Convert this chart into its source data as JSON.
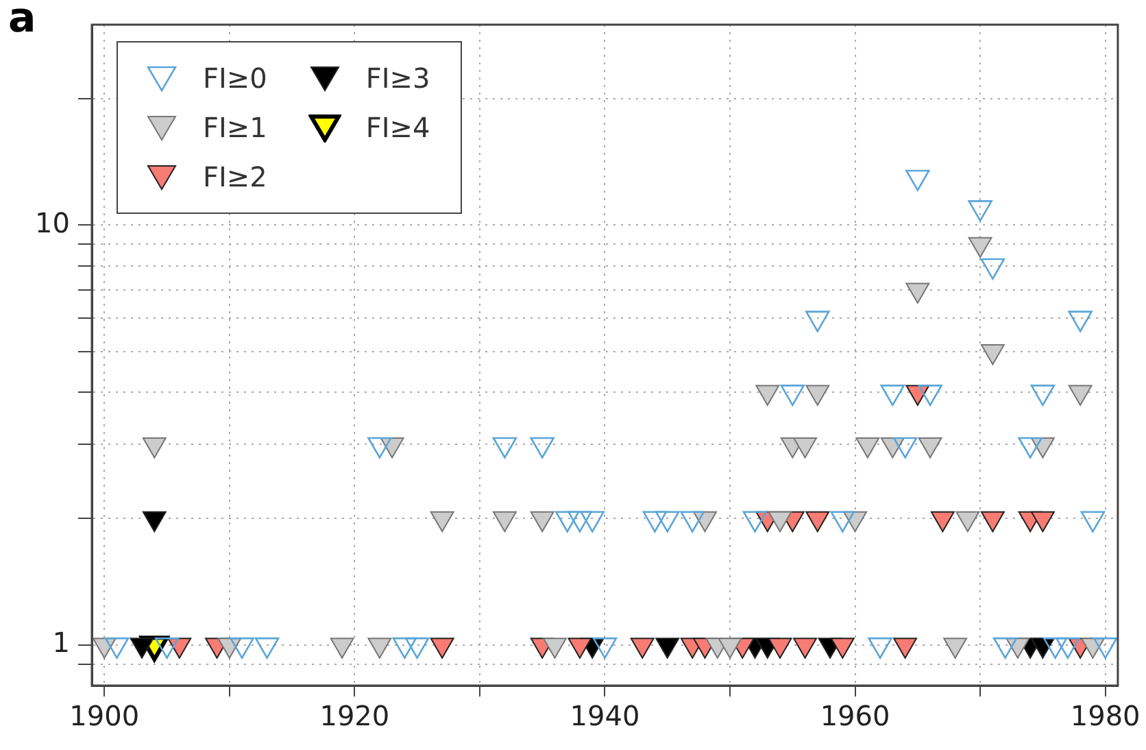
{
  "chart_data": {
    "type": "scatter",
    "title": "a",
    "marker": "triangle",
    "log": "y",
    "grid": true,
    "legend": "top left",
    "xlim": [
      1899,
      1981
    ],
    "xticks": [
      1900,
      {
        "value": 1910,
        "label": null
      },
      1920,
      {
        "value": 1930,
        "label": null
      },
      1940,
      {
        "value": 1950,
        "label": null
      },
      1960,
      {
        "value": 1970,
        "label": null
      },
      1980
    ],
    "ylim": [
      0.8,
      30
    ],
    "yticks": [
      {
        "value": 0.9,
        "label": null
      },
      1,
      {
        "value": 2,
        "label": null
      },
      {
        "value": 3,
        "label": null
      },
      {
        "value": 4,
        "label": null
      },
      {
        "value": 5,
        "label": null
      },
      {
        "value": 6,
        "label": null
      },
      {
        "value": 7,
        "label": null
      },
      {
        "value": 8,
        "label": null
      },
      {
        "value": 9,
        "label": null
      },
      10,
      {
        "value": 20,
        "label": null
      }
    ],
    "series": [
      {
        "name": "FI≥0",
        "color": "#5aa5d8",
        "x": [
          1901,
          1905,
          1911,
          1913,
          1924,
          1925,
          1940,
          1962,
          1972,
          1976,
          1977,
          1980,
          1937,
          1938,
          1939,
          1944,
          1945,
          1947,
          1952,
          1959,
          1979,
          1922,
          1932,
          1935,
          1964,
          1974,
          1955,
          1963,
          1966,
          1975,
          1957,
          1978,
          1971,
          1970,
          1965
        ],
        "values": [
          1,
          1,
          1,
          1,
          1,
          1,
          1,
          1,
          1,
          1,
          1,
          1,
          2,
          2,
          2,
          2,
          2,
          2,
          2,
          2,
          2,
          3,
          3,
          3,
          3,
          3,
          4,
          4,
          4,
          4,
          6,
          6,
          8,
          11,
          13
        ]
      },
      {
        "name": "FI≥1",
        "color": "#cccccc",
        "x": [
          1900,
          1910,
          1919,
          1922,
          1936,
          1949,
          1950,
          1968,
          1973,
          1979,
          1927,
          1932,
          1935,
          1948,
          1954,
          1960,
          1969,
          1904,
          1923,
          1955,
          1956,
          1961,
          1963,
          1966,
          1975,
          1953,
          1957,
          1978,
          1971,
          1965,
          1970
        ],
        "values": [
          1,
          1,
          1,
          1,
          1,
          1,
          1,
          1,
          1,
          1,
          2,
          2,
          2,
          2,
          2,
          2,
          2,
          3,
          3,
          3,
          3,
          3,
          3,
          3,
          3,
          4,
          4,
          4,
          5,
          7,
          9
        ]
      },
      {
        "name": "FI≥2",
        "color": "#f87c74",
        "x": [
          1906,
          1909,
          1927,
          1935,
          1938,
          1943,
          1947,
          1948,
          1951,
          1954,
          1956,
          1959,
          1964,
          1978,
          1953,
          1955,
          1957,
          1967,
          1971,
          1974,
          1975,
          1965
        ],
        "values": [
          1,
          1,
          1,
          1,
          1,
          1,
          1,
          1,
          1,
          1,
          1,
          1,
          1,
          1,
          2,
          2,
          2,
          2,
          2,
          2,
          2,
          4
        ]
      },
      {
        "name": "FI≥3",
        "color": "#000000",
        "x": [
          1903,
          1939,
          1945,
          1952,
          1953,
          1958,
          1974,
          1975,
          1904
        ],
        "values": [
          1,
          1,
          1,
          1,
          1,
          1,
          1,
          1,
          2
        ]
      },
      {
        "name": "FI≥4",
        "color": "#ffff00",
        "x": [
          1904
        ],
        "values": [
          1
        ]
      }
    ]
  }
}
